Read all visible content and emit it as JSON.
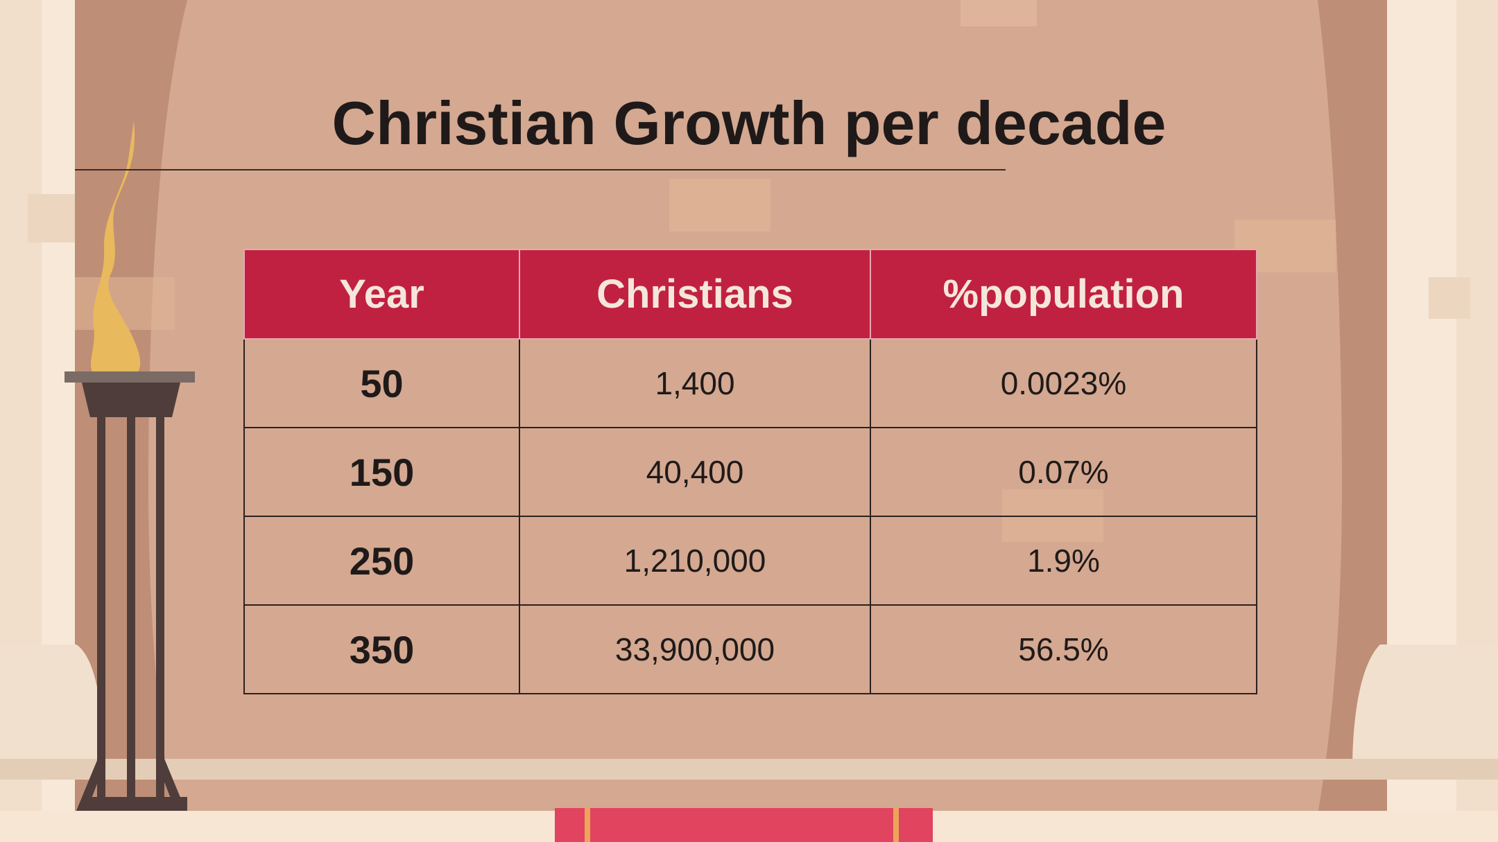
{
  "slide": {
    "title": "Christian Growth per decade"
  },
  "table": {
    "headers": [
      "Year",
      "Christians",
      "%population"
    ],
    "rows": [
      {
        "year": "50",
        "christians": "1,400",
        "percent": "0.0023%"
      },
      {
        "year": "150",
        "christians": "40,400",
        "percent": "0.07%"
      },
      {
        "year": "250",
        "christians": "1,210,000",
        "percent": "1.9%"
      },
      {
        "year": "350",
        "christians": "33,900,000",
        "percent": "56.5%"
      }
    ]
  },
  "colors": {
    "background": "#d4a891",
    "curtain_shadow": "#bf8e76",
    "header_fill": "#c12140",
    "header_text": "#f5e6dc",
    "text": "#1f1a19",
    "flame": "#e8b95d",
    "stand": "#4e3d3b",
    "carpet": "#e0445e",
    "wall": "#f7e8d8"
  }
}
